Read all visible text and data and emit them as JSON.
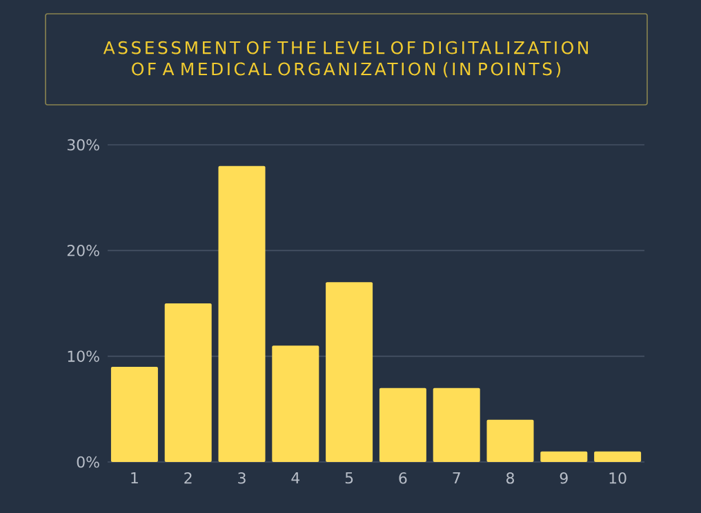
{
  "chart_data": {
    "type": "bar",
    "title": "ASSESSMENT OF THE LEVEL OF DIGITALIZATION OF A MEDICAL ORGANIZATION (IN POINTS)",
    "categories": [
      "1",
      "2",
      "3",
      "4",
      "5",
      "6",
      "7",
      "8",
      "9",
      "10"
    ],
    "values": [
      9,
      15,
      28,
      11,
      17,
      7,
      7,
      4,
      1,
      1
    ],
    "color": "#ffdd57",
    "ylim": [
      0,
      30
    ],
    "yticks": [
      {
        "value": 0,
        "label": "0%"
      },
      {
        "value": 10,
        "label": "10%"
      },
      {
        "value": 20,
        "label": "20%"
      },
      {
        "value": 30,
        "label": "30%"
      }
    ],
    "grid": "y"
  }
}
